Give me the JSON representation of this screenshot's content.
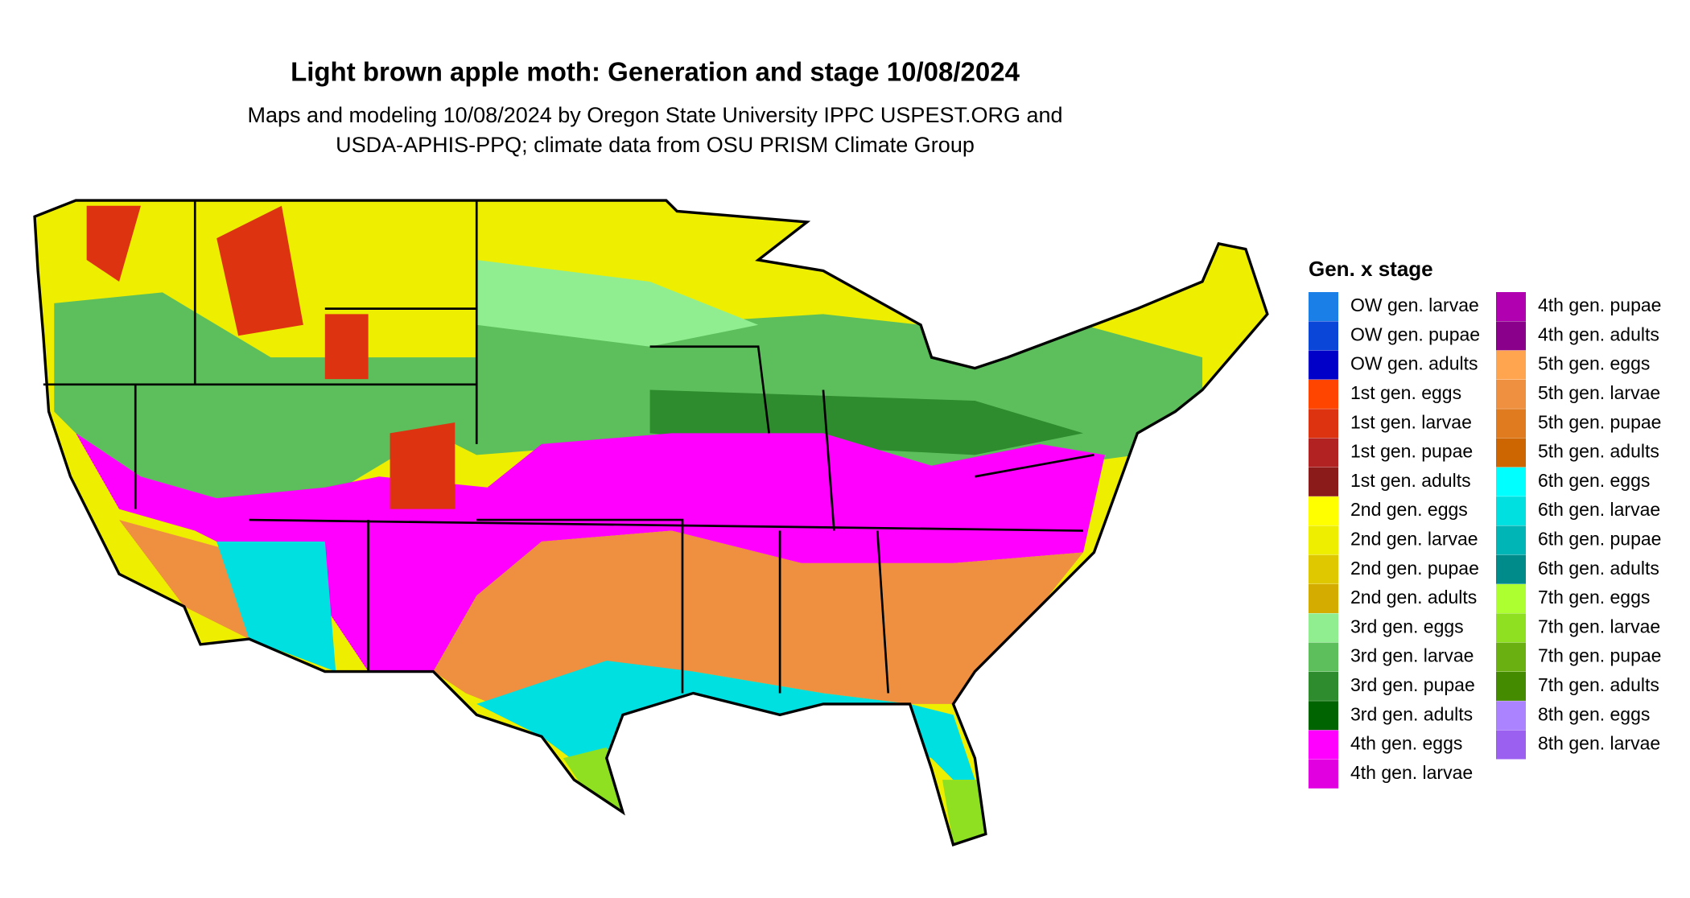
{
  "title": "Light brown apple moth: Generation and stage 10/08/2024",
  "subtitle": [
    "Maps and modeling 10/08/2024 by Oregon State University IPPC USPEST.ORG and",
    "USDA-APHIS-PPQ; climate data from OSU PRISM Climate Group"
  ],
  "legend": {
    "title": "Gen. x stage",
    "items": [
      {
        "label": "OW gen. larvae",
        "color": "#1a80e8"
      },
      {
        "label": "OW gen. pupae",
        "color": "#0a46d8"
      },
      {
        "label": "OW gen. adults",
        "color": "#0000c8"
      },
      {
        "label": "1st gen. eggs",
        "color": "#ff4500"
      },
      {
        "label": "1st gen. larvae",
        "color": "#dd3311"
      },
      {
        "label": "1st gen. pupae",
        "color": "#b22222"
      },
      {
        "label": "1st gen. adults",
        "color": "#8b1a1a"
      },
      {
        "label": "2nd gen. eggs",
        "color": "#ffff00"
      },
      {
        "label": "2nd gen. larvae",
        "color": "#eeee00"
      },
      {
        "label": "2nd gen. pupae",
        "color": "#e0c800"
      },
      {
        "label": "2nd gen. adults",
        "color": "#d4ac00"
      },
      {
        "label": "3rd gen. eggs",
        "color": "#90ee90"
      },
      {
        "label": "3rd gen. larvae",
        "color": "#5cbf5c"
      },
      {
        "label": "3rd gen. pupae",
        "color": "#2e8b2e"
      },
      {
        "label": "3rd gen. adults",
        "color": "#006400"
      },
      {
        "label": "4th gen. eggs",
        "color": "#ff00ff"
      },
      {
        "label": "4th gen. larvae",
        "color": "#e000e0"
      },
      {
        "label": "4th gen. pupae",
        "color": "#b000b0"
      },
      {
        "label": "4th gen. adults",
        "color": "#8b008b"
      },
      {
        "label": "5th gen. eggs",
        "color": "#ffa54f"
      },
      {
        "label": "5th gen. larvae",
        "color": "#ee9040"
      },
      {
        "label": "5th gen. pupae",
        "color": "#e07b20"
      },
      {
        "label": "5th gen. adults",
        "color": "#cd6600"
      },
      {
        "label": "6th gen. eggs",
        "color": "#00ffff"
      },
      {
        "label": "6th gen. larvae",
        "color": "#00e0e0"
      },
      {
        "label": "6th gen. pupae",
        "color": "#00b5b5"
      },
      {
        "label": "6th gen. adults",
        "color": "#008b8b"
      },
      {
        "label": "7th gen. eggs",
        "color": "#adff2f"
      },
      {
        "label": "7th gen. larvae",
        "color": "#8ee020"
      },
      {
        "label": "7th gen. pupae",
        "color": "#6ab010"
      },
      {
        "label": "7th gen. adults",
        "color": "#458b00"
      },
      {
        "label": "8th gen. eggs",
        "color": "#ab82ff"
      },
      {
        "label": "8th gen. larvae",
        "color": "#9b60f0"
      }
    ]
  }
}
